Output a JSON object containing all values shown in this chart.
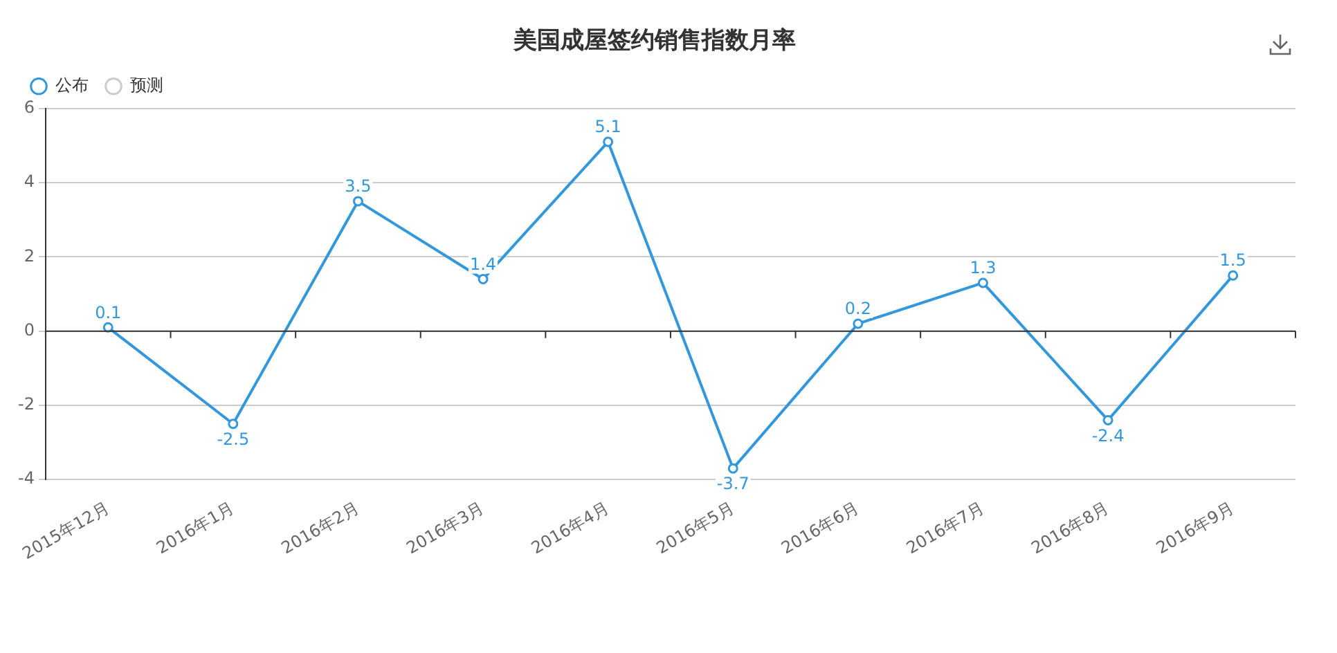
{
  "chart_data": {
    "type": "line",
    "title": "美国成屋签约销售指数月率",
    "categories": [
      "2015年12月",
      "2016年1月",
      "2016年2月",
      "2016年3月",
      "2016年4月",
      "2016年5月",
      "2016年6月",
      "2016年7月",
      "2016年8月",
      "2016年9月"
    ],
    "series": [
      {
        "name": "公布",
        "color": "#3398db",
        "values": [
          0.1,
          -2.5,
          3.5,
          1.4,
          5.1,
          -3.7,
          0.2,
          1.3,
          -2.4,
          1.5
        ]
      },
      {
        "name": "预测",
        "color": "#cccccc",
        "values": [
          null,
          null,
          null,
          null,
          null,
          null,
          null,
          null,
          null,
          null
        ]
      }
    ],
    "ylim": [
      -4,
      6
    ],
    "yticks": [
      -4,
      -2,
      0,
      2,
      4,
      6
    ],
    "grid": "y",
    "legend": "top left",
    "marker": "circle",
    "line_style": "solid",
    "data_labels": true
  }
}
